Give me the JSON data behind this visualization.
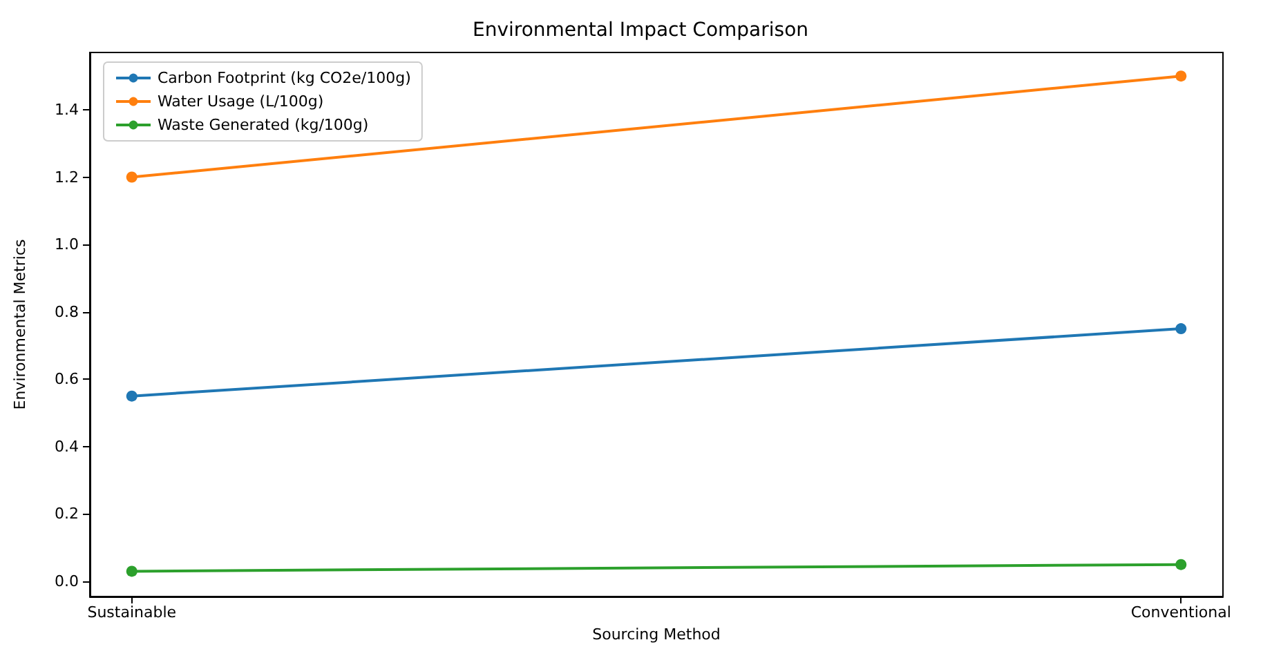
{
  "chart_data": {
    "type": "line",
    "title": "Environmental Impact Comparison",
    "xlabel": "Sourcing Method",
    "ylabel": "Environmental Metrics",
    "categories": [
      "Sustainable",
      "Conventional"
    ],
    "series": [
      {
        "name": "Carbon Footprint (kg CO2e/100g)",
        "color": "#1f77b4",
        "values": [
          0.55,
          0.75
        ]
      },
      {
        "name": "Water Usage (L/100g)",
        "color": "#ff7f0e",
        "values": [
          1.2,
          1.5
        ]
      },
      {
        "name": "Waste Generated (kg/100g)",
        "color": "#2ca02c",
        "values": [
          0.03,
          0.05
        ]
      }
    ],
    "ylim": [
      -0.045,
      1.57
    ],
    "yticks": [
      {
        "value": 0,
        "label": "0.0"
      },
      0.2,
      0.4,
      0.6,
      0.8,
      {
        "value": 1,
        "label": "1.0"
      },
      1.2,
      1.4
    ],
    "grid": false,
    "legend": "top left",
    "marker": "circle",
    "line_style": "solid"
  }
}
